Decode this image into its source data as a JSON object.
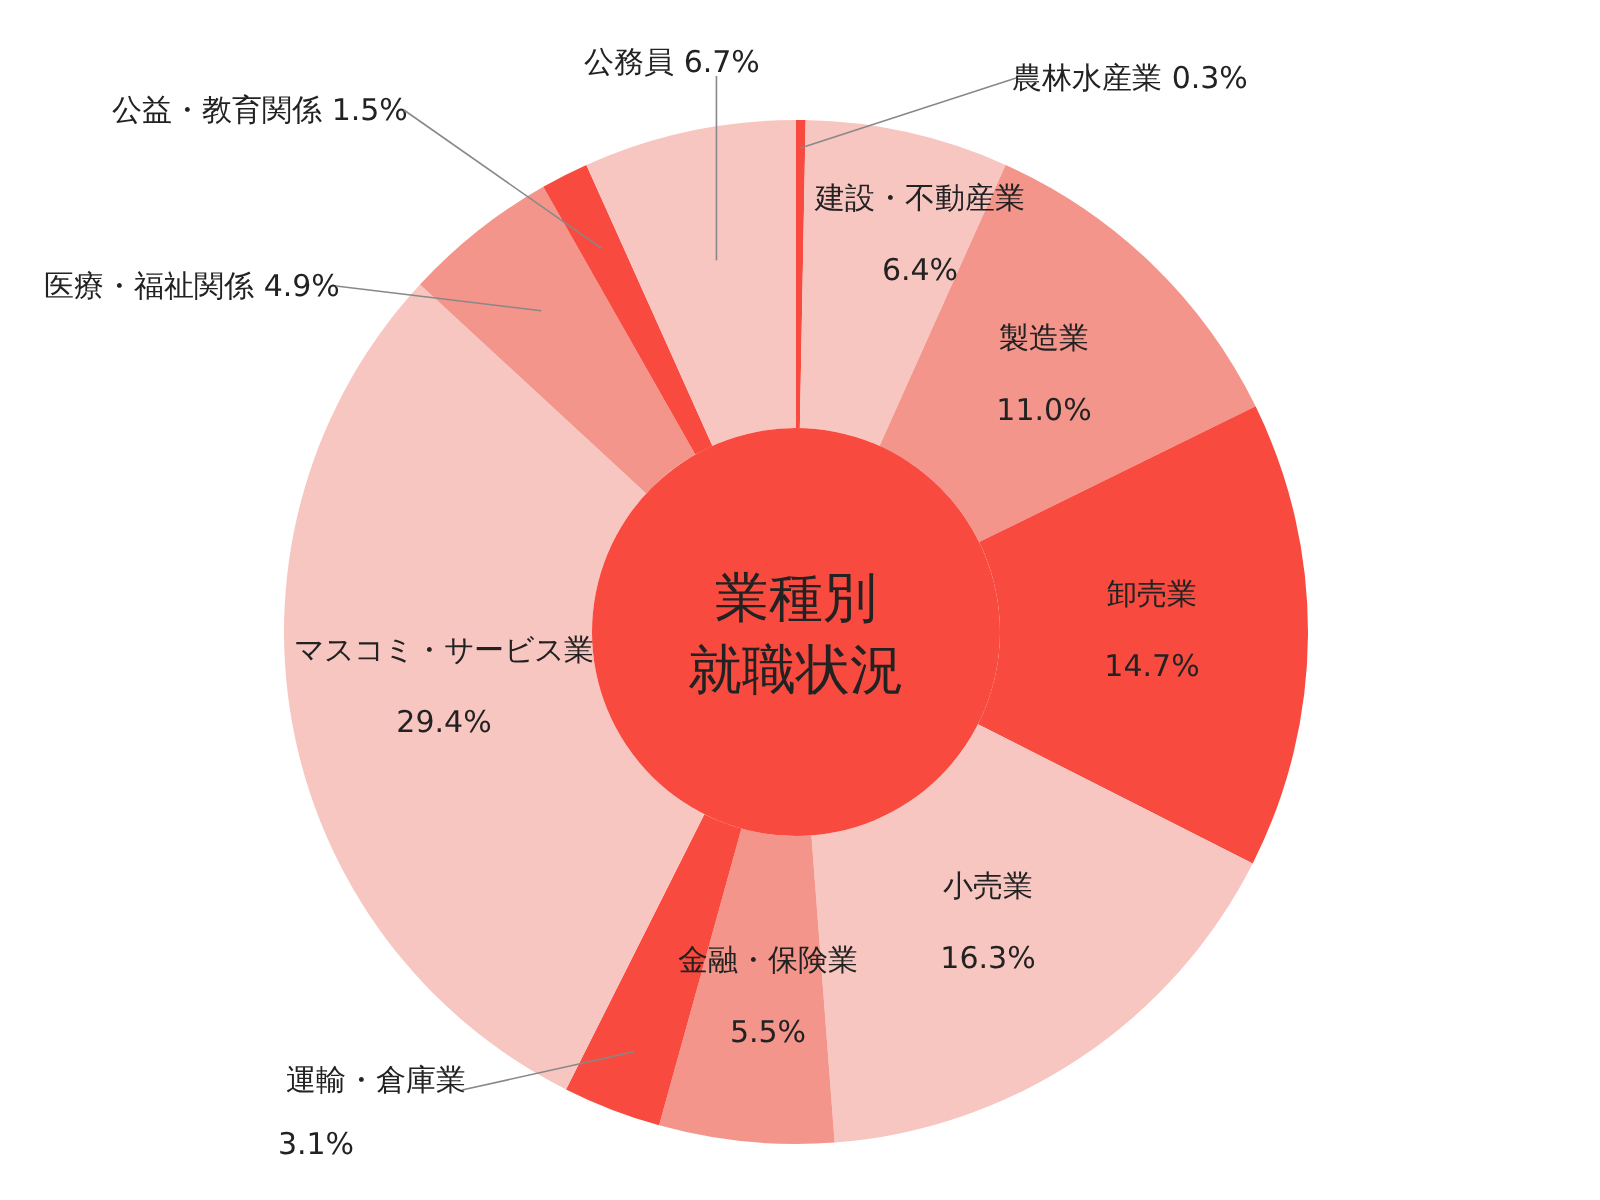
{
  "chart_data": {
    "type": "donut",
    "title": "業種別就職状況",
    "categories": [
      "農林水産業",
      "建設・不動産業",
      "製造業",
      "卸売業",
      "小売業",
      "金融・保険業",
      "運輸・倉庫業",
      "マスコミ・サービス業",
      "医療・福祉関係",
      "公益・教育関係",
      "公務員"
    ],
    "values": [
      0.3,
      6.4,
      11.0,
      14.7,
      16.3,
      5.5,
      3.1,
      29.4,
      4.9,
      1.5,
      6.7
    ],
    "value_labels": [
      "0.3%",
      "6.4%",
      "11.0%",
      "14.7%",
      "16.3%",
      "5.5%",
      "3.1%",
      "29.4%",
      "4.9%",
      "1.5%",
      "6.7%"
    ],
    "colors": [
      "#f84a3f",
      "#f8c6c0",
      "#f3958a",
      "#f84a3f",
      "#f8c6c0",
      "#f3958a",
      "#f84a3f",
      "#f8c6c0",
      "#f3958a",
      "#f84a3f",
      "#f8c6c0"
    ]
  }
}
